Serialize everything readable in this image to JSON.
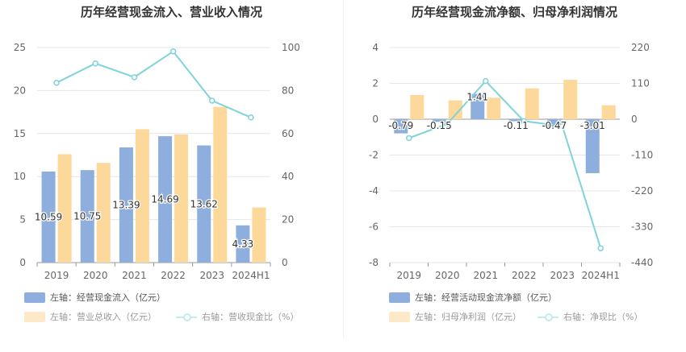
{
  "colors": {
    "bar_primary": "#8eaedd",
    "bar_secondary": "#fdd89b",
    "line": "#7fd3d9",
    "grid": "#e3e6ee",
    "axis_text": "#666666",
    "legend_faded_bar": "#fde8c7",
    "legend_faded_line": "#c3ebee"
  },
  "legend_icons": [
    "swatch",
    "swatch",
    "circle-line"
  ],
  "chart_data": [
    {
      "type": "bar",
      "title": "历年经营现金流入、营业收入情况",
      "categories": [
        "2019",
        "2020",
        "2021",
        "2022",
        "2023",
        "2024H1"
      ],
      "y_left_ticks": [
        "0",
        "5",
        "10",
        "15",
        "20",
        "25"
      ],
      "y_right_ticks": [
        "0",
        "20",
        "40",
        "60",
        "80",
        "100"
      ],
      "ylim_left": [
        0,
        25
      ],
      "ylim_right": [
        0,
        100
      ],
      "series": [
        {
          "name": "左轴：经营现金流入（亿元）",
          "axis": "left",
          "kind": "bar",
          "values": [
            10.59,
            10.75,
            13.39,
            14.69,
            13.62,
            4.33
          ],
          "labels": [
            "10.59",
            "10.75",
            "13.39",
            "14.69",
            "13.62",
            "4.33"
          ]
        },
        {
          "name": "左轴：营业总收入（亿元）",
          "axis": "left",
          "kind": "bar",
          "values": [
            12.6,
            11.6,
            15.5,
            14.9,
            18.1,
            6.4
          ]
        },
        {
          "name": "右轴：营收现金比（%）",
          "axis": "right",
          "kind": "line",
          "values": [
            83.6,
            92.6,
            86.2,
            98.2,
            75.3,
            67.5
          ]
        }
      ]
    },
    {
      "type": "bar",
      "title": "历年经营现金流净额、归母净利润情况",
      "categories": [
        "2019",
        "2020",
        "2021",
        "2022",
        "2023",
        "2024H1"
      ],
      "y_left_ticks": [
        "-8",
        "-6",
        "-4",
        "-2",
        "0",
        "2",
        "4"
      ],
      "y_right_ticks": [
        "-440",
        "-330",
        "-220",
        "-110",
        "0",
        "110",
        "220"
      ],
      "ylim_left": [
        -8,
        4
      ],
      "ylim_right": [
        -440,
        220
      ],
      "series": [
        {
          "name": "左轴：经营活动现金流净额（亿元）",
          "axis": "left",
          "kind": "bar",
          "values": [
            -0.79,
            -0.15,
            1.41,
            -0.11,
            -0.47,
            -3.01
          ],
          "labels": [
            "-0.79",
            "-0.15",
            "1.41",
            "-0.11",
            "-0.47",
            "-3.01"
          ]
        },
        {
          "name": "左轴：归母净利润（亿元）",
          "axis": "left",
          "kind": "bar",
          "values": [
            1.35,
            1.05,
            1.2,
            1.72,
            2.2,
            0.78
          ]
        },
        {
          "name": "右轴：净现比（%）",
          "axis": "right",
          "kind": "line",
          "values": [
            -58,
            -14,
            117,
            -6,
            -21,
            -396
          ]
        }
      ]
    }
  ]
}
